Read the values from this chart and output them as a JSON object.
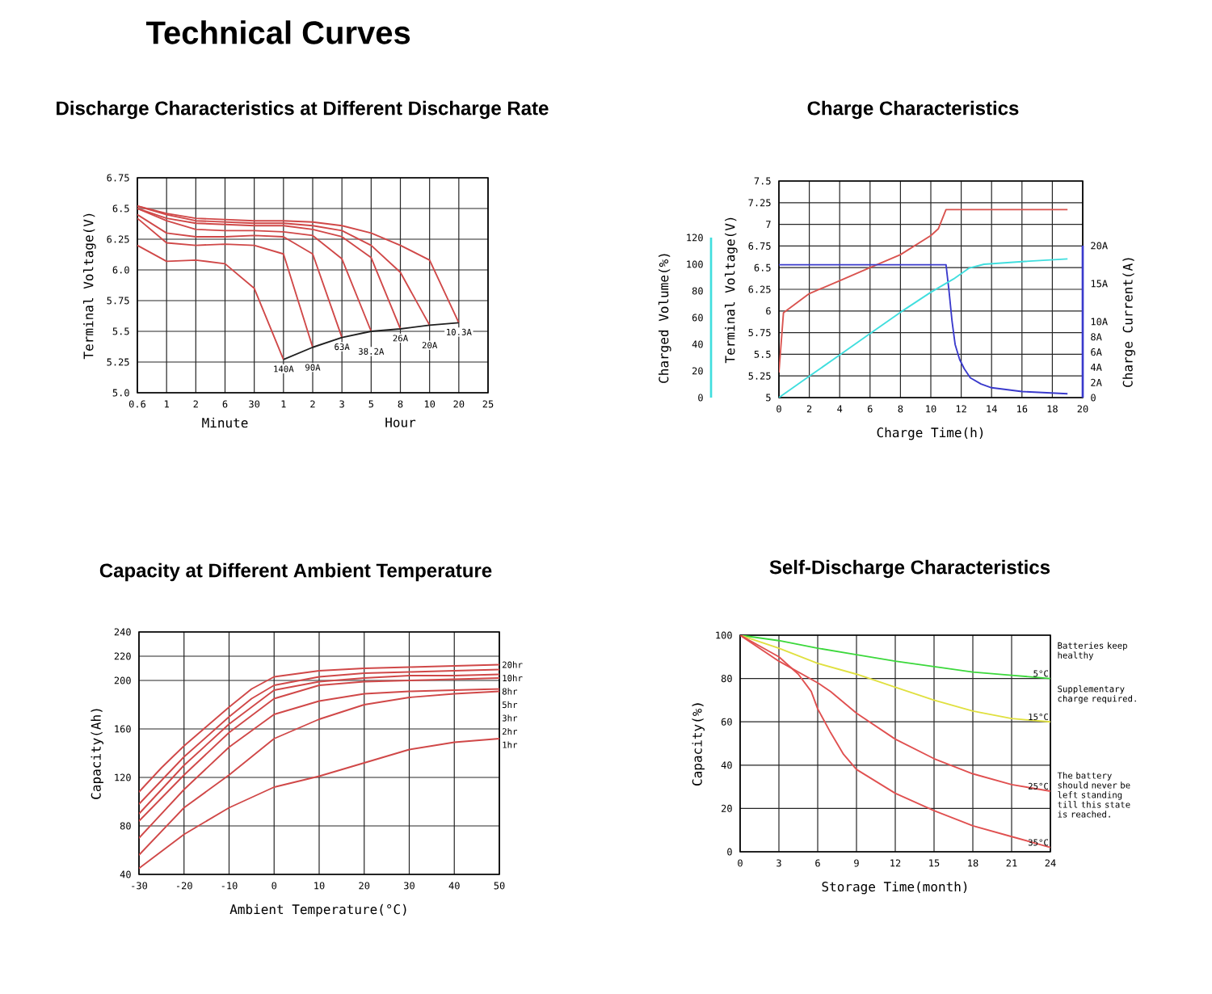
{
  "chart_data": [
    {
      "type": "other",
      "title": "Technical Curves"
    },
    {
      "type": "line",
      "title": "Discharge Characteristics at Different Discharge Rate",
      "ylabel": "Terminal Voltage(V)",
      "categories": [
        "0.6",
        "1",
        "2",
        "6",
        "30",
        "1",
        "2",
        "3",
        "5",
        "8",
        "10",
        "20",
        "25"
      ],
      "ylim": [
        5,
        6.75
      ],
      "yticks": [
        {
          "value": 5,
          "label": "5.0"
        },
        5.25,
        5.5,
        5.75,
        {
          "value": 6,
          "label": "6.0"
        },
        6.25,
        6.5,
        6.75
      ],
      "grid": true,
      "annotations": [
        "Minute",
        "Hour"
      ],
      "series": [
        {
          "name": "140A",
          "color": "#d04848",
          "values": [
            6.2,
            6.07,
            6.08,
            6.05,
            5.85,
            5.27,
            null,
            null,
            null,
            null,
            null,
            null,
            null
          ]
        },
        {
          "name": "90A",
          "color": "#d04848",
          "values": [
            6.42,
            6.22,
            6.2,
            6.21,
            6.2,
            6.13,
            5.37,
            null,
            null,
            null,
            null,
            null,
            null
          ]
        },
        {
          "name": "63A",
          "color": "#d04848",
          "values": [
            6.45,
            6.3,
            6.27,
            6.27,
            6.28,
            6.27,
            6.13,
            5.45,
            null,
            null,
            null,
            null,
            null
          ]
        },
        {
          "name": "38.2A",
          "color": "#d04848",
          "values": [
            6.5,
            6.4,
            6.33,
            6.32,
            6.32,
            6.31,
            6.28,
            6.09,
            5.5,
            null,
            null,
            null,
            null
          ]
        },
        {
          "name": "26A",
          "color": "#d04848",
          "values": [
            6.5,
            6.42,
            6.38,
            6.37,
            6.36,
            6.36,
            6.33,
            6.27,
            6.1,
            5.52,
            null,
            null,
            null
          ]
        },
        {
          "name": "20A",
          "color": "#d04848",
          "values": [
            6.52,
            6.45,
            6.4,
            6.39,
            6.38,
            6.38,
            6.36,
            6.32,
            6.2,
            5.98,
            5.55,
            null,
            null
          ]
        },
        {
          "name": "10.3A",
          "color": "#d04848",
          "values": [
            6.52,
            6.46,
            6.42,
            6.41,
            6.4,
            6.4,
            6.39,
            6.36,
            6.3,
            6.2,
            6.08,
            5.57,
            null
          ]
        },
        {
          "color": "#202020",
          "values": [
            null,
            null,
            null,
            null,
            null,
            5.27,
            5.37,
            5.45,
            5.5,
            5.52,
            5.55,
            5.57,
            null
          ]
        }
      ]
    },
    {
      "type": "line",
      "title": "Charge Characteristics",
      "xlabel": "Charge Time(h)",
      "ylabel": "Terminal Voltage(V)",
      "y2label": "Charge Current(A)",
      "y3label": "Charged Volume(%)",
      "xlim": [
        0,
        20
      ],
      "xticks": [
        0,
        2,
        4,
        6,
        8,
        10,
        12,
        14,
        16,
        18,
        20
      ],
      "ylim": [
        5,
        7.5
      ],
      "yticks": [
        5,
        5.25,
        5.5,
        5.75,
        6,
        6.25,
        6.5,
        6.75,
        7,
        7.25,
        7.5
      ],
      "y2lim": [
        0,
        20
      ],
      "y2ticks": [
        0,
        {
          "value": 2,
          "label": "2A"
        },
        {
          "value": 4,
          "label": "4A"
        },
        {
          "value": 6,
          "label": "6A"
        },
        {
          "value": 8,
          "label": "8A"
        },
        {
          "value": 10,
          "label": "10A"
        },
        {
          "value": 15,
          "label": "15A"
        },
        {
          "value": 20,
          "label": "20A"
        }
      ],
      "y3lim": [
        0,
        120
      ],
      "y3ticks": [
        0,
        20,
        40,
        60,
        80,
        100,
        120
      ],
      "grid": true,
      "series": [
        {
          "color": "#d9534f",
          "x": [
            0,
            0.3,
            2,
            4,
            6,
            8,
            10,
            10.5,
            11,
            19
          ],
          "values": [
            5.29,
            5.98,
            6.2,
            6.35,
            6.5,
            6.65,
            6.87,
            6.95,
            7.17,
            7.17
          ]
        },
        {
          "color": "#3a3acc",
          "axis": "y2",
          "x": [
            0,
            11,
            11.2,
            11.4,
            11.6,
            11.9,
            12.2,
            12.6,
            13.3,
            14,
            16,
            19
          ],
          "values": [
            17.5,
            17.5,
            14,
            10,
            7,
            5,
            3.8,
            2.6,
            1.8,
            1.3,
            0.8,
            0.5
          ]
        },
        {
          "color": "#40dede",
          "axis": "y3",
          "x": [
            0,
            2,
            4,
            6,
            8,
            10,
            11.5,
            12.5,
            13.5,
            16,
            19
          ],
          "values": [
            0,
            16,
            32,
            48,
            64,
            79,
            89,
            97,
            100,
            102,
            104
          ]
        }
      ]
    },
    {
      "type": "line",
      "title": "Capacity at Different Ambient Temperature",
      "xlabel": "Ambient Temperature(°C)",
      "ylabel": "Capacity(Ah)",
      "xlim": [
        -30,
        50
      ],
      "xticks": [
        -30,
        -20,
        -10,
        0,
        10,
        20,
        30,
        40,
        50
      ],
      "ylim": [
        40,
        240
      ],
      "yticks": [
        40,
        80,
        120,
        160,
        200,
        220,
        240
      ],
      "grid": true,
      "series": [
        {
          "name": "20hr",
          "color": "#d04848",
          "x": [
            -30,
            -25,
            -20,
            -15,
            -10,
            -5,
            0,
            10,
            20,
            30,
            40,
            50
          ],
          "values": [
            108,
            128,
            146,
            162,
            178,
            193,
            203,
            208,
            210,
            211,
            212,
            213
          ]
        },
        {
          "name": "10hr",
          "color": "#d04848",
          "x": [
            -30,
            -20,
            -10,
            -5,
            0,
            10,
            20,
            30,
            40,
            50
          ],
          "values": [
            98,
            137,
            170,
            185,
            196,
            203,
            206,
            207,
            208,
            209
          ]
        },
        {
          "name": "8hr",
          "color": "#d04848",
          "x": [
            -30,
            -20,
            -10,
            0,
            10,
            20,
            30,
            40,
            50
          ],
          "values": [
            90,
            130,
            164,
            192,
            199,
            202,
            204,
            204,
            205
          ]
        },
        {
          "name": "5hr",
          "color": "#d04848",
          "x": [
            -30,
            -20,
            -10,
            0,
            10,
            20,
            30,
            40,
            50
          ],
          "values": [
            84,
            122,
            157,
            185,
            196,
            199,
            200,
            201,
            202
          ]
        },
        {
          "name": "3hr",
          "color": "#d04848",
          "x": [
            -30,
            -20,
            -10,
            0,
            10,
            20,
            30,
            40,
            50
          ],
          "values": [
            70,
            110,
            145,
            172,
            183,
            189,
            191,
            192,
            193
          ]
        },
        {
          "name": "2hr",
          "color": "#d04848",
          "x": [
            -30,
            -20,
            -10,
            0,
            10,
            20,
            30,
            40,
            50
          ],
          "values": [
            56,
            95,
            122,
            152,
            168,
            180,
            186,
            189,
            191
          ]
        },
        {
          "name": "1hr",
          "color": "#d04848",
          "x": [
            -30,
            -20,
            -10,
            0,
            10,
            20,
            30,
            40,
            50
          ],
          "values": [
            45,
            73,
            95,
            112,
            121,
            132,
            143,
            149,
            152
          ]
        }
      ]
    },
    {
      "type": "line",
      "title": "Self-Discharge Characteristics",
      "xlabel": "Storage Time(month)",
      "ylabel": "Capacity(%)",
      "xlim": [
        0,
        24
      ],
      "xticks": [
        0,
        3,
        6,
        9,
        12,
        15,
        18,
        21,
        24
      ],
      "ylim": [
        0,
        100
      ],
      "yticks": [
        0,
        20,
        40,
        60,
        80,
        100
      ],
      "grid": true,
      "series": [
        {
          "name": "5°C",
          "color": "#3cd83c",
          "x": [
            0,
            3,
            6,
            9,
            12,
            15,
            18,
            21,
            24
          ],
          "values": [
            100,
            97.5,
            94,
            91,
            88,
            85.5,
            83,
            81.5,
            80
          ]
        },
        {
          "name": "15°C",
          "color": "#e0e040",
          "x": [
            0,
            3,
            6,
            9,
            12,
            15,
            18,
            21,
            24
          ],
          "values": [
            100,
            94,
            87,
            82,
            76,
            70,
            65,
            61.5,
            60
          ]
        },
        {
          "name": "25°C",
          "color": "#e05050",
          "x": [
            0,
            3,
            6,
            7,
            9,
            12,
            15,
            18,
            21,
            24
          ],
          "values": [
            100,
            88,
            78,
            74,
            64,
            52,
            43,
            36,
            31,
            28
          ]
        },
        {
          "name": "35°C",
          "color": "#e05050",
          "x": [
            0,
            3,
            4.5,
            5.5,
            6,
            7,
            8,
            9,
            12,
            15,
            18,
            21,
            24
          ],
          "values": [
            100,
            90,
            82,
            74,
            66,
            55,
            45,
            38,
            27,
            19,
            12,
            7,
            2
          ]
        }
      ],
      "annotations": [
        "Batteries keep healthy",
        "Supplementary charge required.",
        "The battery should never be left standing till this state is reached."
      ]
    }
  ]
}
